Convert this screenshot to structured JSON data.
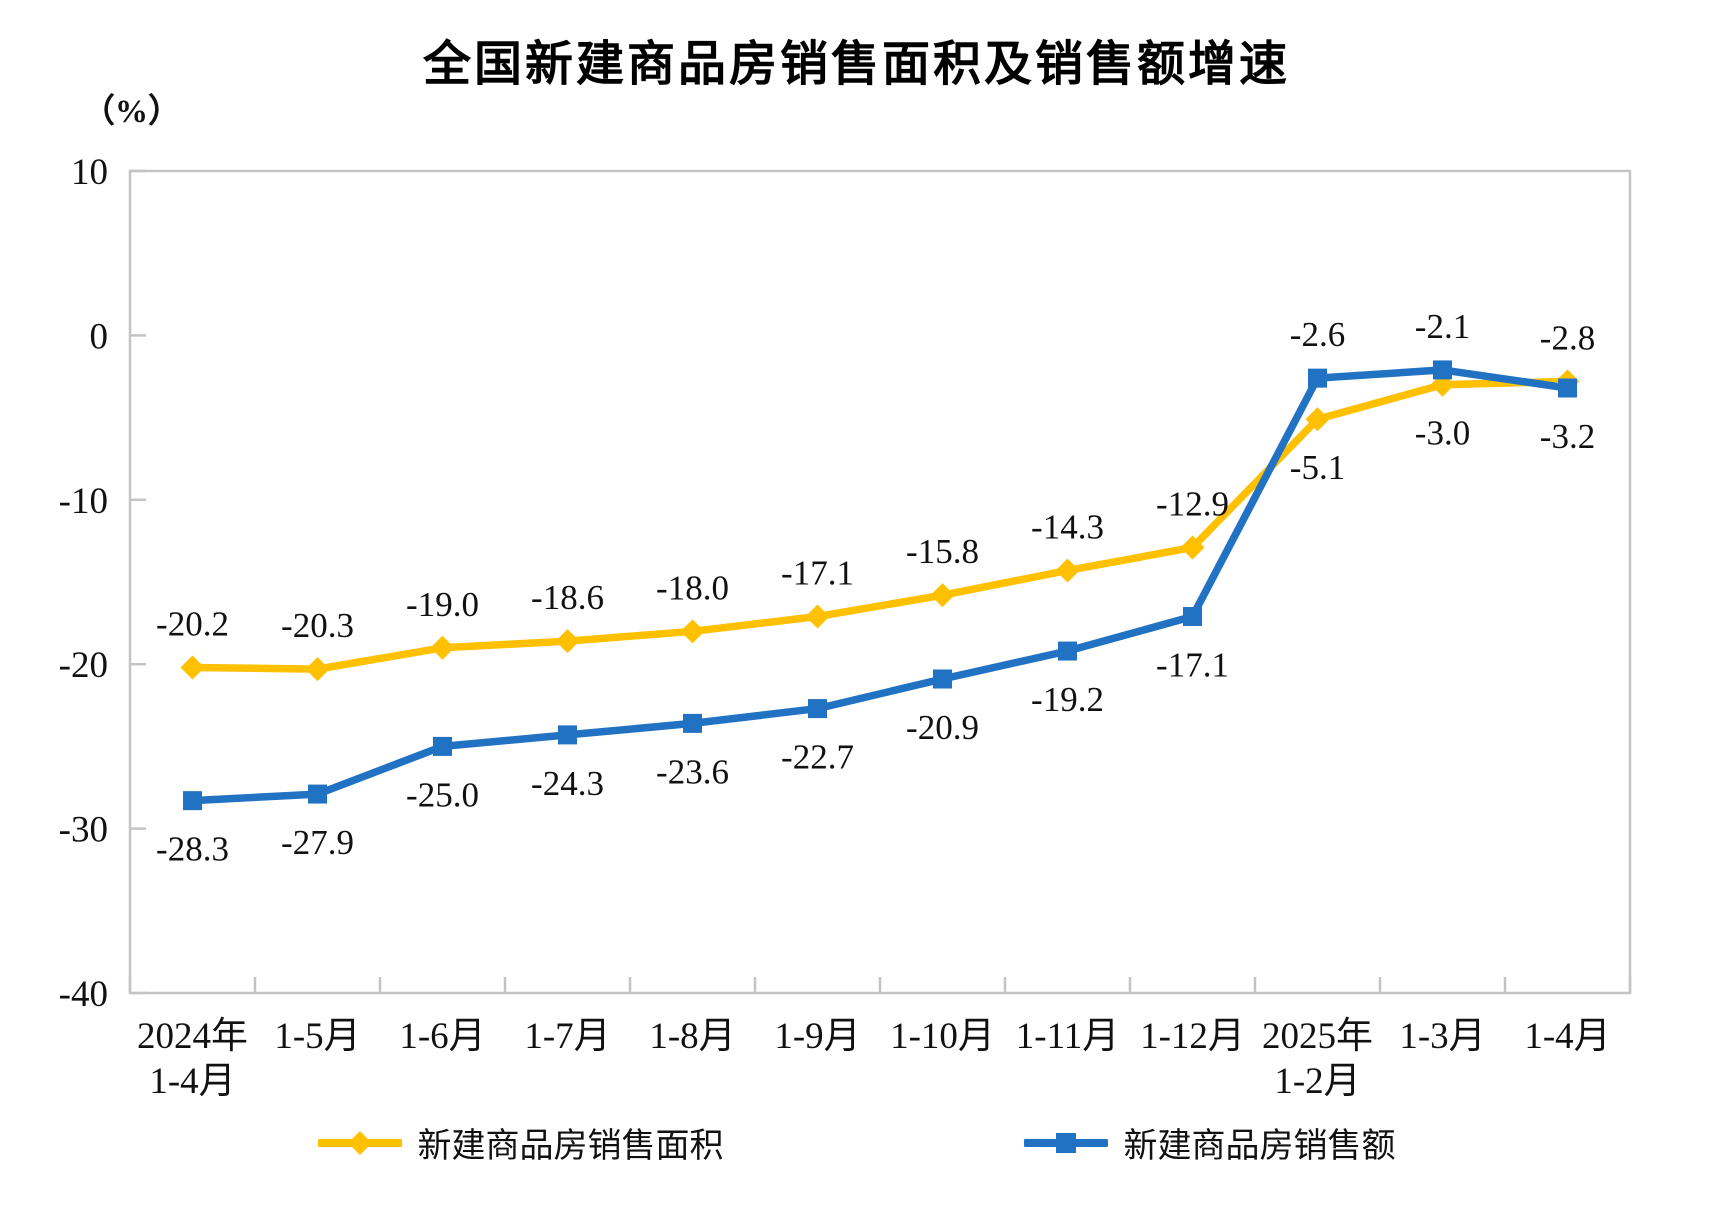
{
  "chart_data": {
    "type": "line",
    "title": "全国新建商品房销售面积及销售额增速",
    "y_unit": "（%）",
    "ylim": [
      -40,
      10
    ],
    "y_ticks": [
      10,
      0,
      -10,
      -20,
      -30,
      -40
    ],
    "grid": false,
    "legend_position": "bottom",
    "categories": [
      "2024年\n1-4月",
      "1-5月",
      "1-6月",
      "1-7月",
      "1-8月",
      "1-9月",
      "1-10月",
      "1-11月",
      "1-12月",
      "2025年\n1-2月",
      "1-3月",
      "1-4月"
    ],
    "series": [
      {
        "name": "新建商品房销售面积",
        "color": "#FFC000",
        "marker": "diamond",
        "values": [
          -20.2,
          -20.3,
          -19.0,
          -18.6,
          -18.0,
          -17.1,
          -15.8,
          -14.3,
          -12.9,
          -5.1,
          -3.0,
          -2.8
        ],
        "label_side": [
          "above",
          "above",
          "above",
          "above",
          "above",
          "above",
          "above",
          "above",
          "above",
          "below",
          "below",
          "above"
        ]
      },
      {
        "name": "新建商品房销售额",
        "color": "#2272C4",
        "marker": "square",
        "values": [
          -28.3,
          -27.9,
          -25.0,
          -24.3,
          -23.6,
          -22.7,
          -20.9,
          -19.2,
          -17.1,
          -2.6,
          -2.1,
          -3.2
        ],
        "label_side": [
          "below",
          "below",
          "below",
          "below",
          "below",
          "below",
          "below",
          "below",
          "below",
          "above",
          "above",
          "below"
        ]
      }
    ],
    "axis_color": "#C4C4C4",
    "text_color": "#111111"
  }
}
